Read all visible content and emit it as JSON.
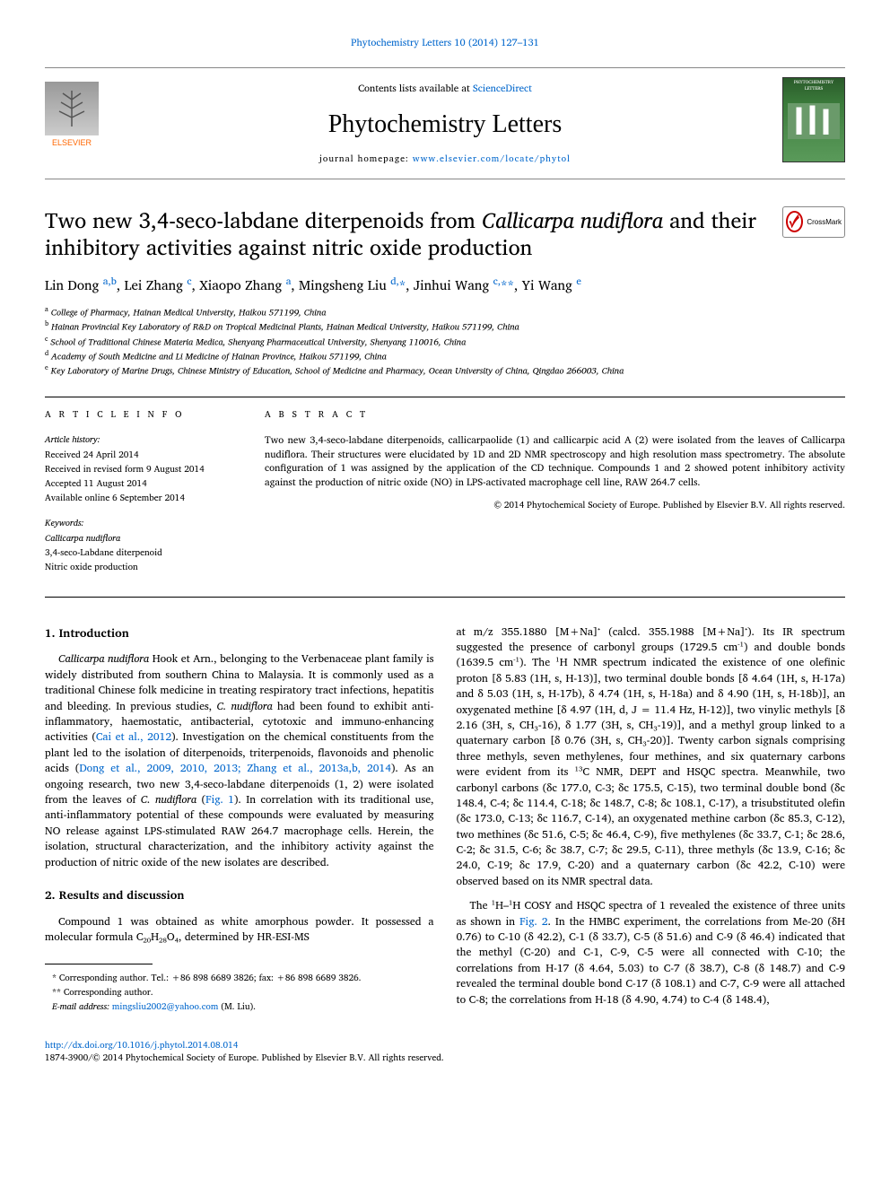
{
  "top_link": "Phytochemistry Letters 10 (2014) 127–131",
  "header": {
    "contents_prefix": "Contents lists available at ",
    "contents_link": "ScienceDirect",
    "journal_name": "Phytochemistry Letters",
    "homepage_prefix": "journal homepage: ",
    "homepage_link": "www.elsevier.com/locate/phytol",
    "elsevier": "ELSEVIER",
    "cover_title": "PHYTOCHEMISTRY LETTERS"
  },
  "crossmark": "CrossMark",
  "title_part1": "Two new 3,4-seco-labdane diterpenoids from ",
  "title_italic": "Callicarpa nudiflora",
  "title_part2": " and their inhibitory activities against nitric oxide production",
  "authors_html": "Lin Dong <sup><a>a,b</a></sup>, Lei Zhang <sup><a>c</a></sup>, Xiaopo Zhang <sup><a>a</a></sup>, Mingsheng Liu <sup><a>d,</a></sup><a>*</a>, Jinhui Wang <sup><a>c,</a></sup><a>**</a>, Yi Wang <sup><a>e</a></sup>",
  "affiliations": [
    "a College of Pharmacy, Hainan Medical University, Haikou 571199, China",
    "b Hainan Provincial Key Laboratory of R&D on Tropical Medicinal Plants, Hainan Medical University, Haikou 571199, China",
    "c School of Traditional Chinese Materia Medica, Shenyang Pharmaceutical University, Shenyang 110016, China",
    "d Academy of South Medicine and Li Medicine of Hainan Province, Haikou 571199, China",
    "e Key Laboratory of Marine Drugs, Chinese Ministry of Education, School of Medicine and Pharmacy, Ocean University of China, Qingdao 266003, China"
  ],
  "info": {
    "label": "A R T I C L E   I N F O",
    "history_label": "Article history:",
    "history": [
      "Received 24 April 2014",
      "Received in revised form 9 August 2014",
      "Accepted 11 August 2014",
      "Available online 6 September 2014"
    ],
    "keywords_label": "Keywords:",
    "keywords": [
      "Callicarpa nudiflora",
      "3,4-seco-Labdane diterpenoid",
      "Nitric oxide production"
    ]
  },
  "abstract": {
    "label": "A B S T R A C T",
    "text": "Two new 3,4-seco-labdane diterpenoids, callicarpaolide (1) and callicarpic acid A (2) were isolated from the leaves of Callicarpa nudiflora. Their structures were elucidated by 1D and 2D NMR spectroscopy and high resolution mass spectrometry. The absolute configuration of 1 was assigned by the application of the CD technique. Compounds 1 and 2 showed potent inhibitory activity against the production of nitric oxide (NO) in LPS-activated macrophage cell line, RAW 264.7 cells.",
    "copyright": "© 2014 Phytochemical Society of Europe. Published by Elsevier B.V. All rights reserved."
  },
  "sections": {
    "intro_heading": "1. Introduction",
    "intro_p1": "Callicarpa nudiflora Hook et Arn., belonging to the Verbenaceae plant family is widely distributed from southern China to Malaysia. It is commonly used as a traditional Chinese folk medicine in treating respiratory tract infections, hepatitis and bleeding. In previous studies, C. nudiflora had been found to exhibit anti-inflammatory, haemostatic, antibacterial, cytotoxic and immuno-enhancing activities (",
    "intro_ref1": "Cai et al., 2012",
    "intro_p1b": "). Investigation on the chemical constituents from the plant led to the isolation of diterpenoids, triterpenoids, flavonoids and phenolic acids (",
    "intro_ref2": "Dong et al., 2009, 2010, 2013; Zhang et al., 2013a,b, 2014",
    "intro_p1c": "). As an ongoing research, two new 3,4-seco-labdane diterpenoids (1, 2) were isolated from the leaves of C. nudiflora (",
    "intro_ref3": "Fig. 1",
    "intro_p1d": "). In correlation with its traditional use, anti-inflammatory potential of these compounds were evaluated by measuring NO release against LPS-stimulated RAW 264.7 macrophage cells. Herein, the isolation, structural characterization, and the inhibitory activity against the production of nitric oxide of the new isolates are described.",
    "results_heading": "2. Results and discussion",
    "results_p1": "Compound 1 was obtained as white amorphous powder. It possessed a molecular formula C₂₀H₂₈O₄, determined by HR-ESI-MS",
    "col2_p1": "at m/z 355.1880 [M+Na]⁺ (calcd. 355.1988 [M+Na]⁺). Its IR spectrum suggested the presence of carbonyl groups (1729.5 cm⁻¹) and double bonds (1639.5 cm⁻¹). The ¹H NMR spectrum indicated the existence of one olefinic proton [δ 5.83 (1H, s, H-13)], two terminal double bonds [δ 4.64 (1H, s, H-17a) and δ 5.03 (1H, s, H-17b), δ 4.74 (1H, s, H-18a) and δ 4.90 (1H, s, H-18b)], an oxygenated methine [δ 4.97 (1H, d, J = 11.4 Hz, H-12)], two vinylic methyls [δ 2.16 (3H, s, CH₃-16), δ 1.77 (3H, s, CH₃-19)], and a methyl group linked to a quaternary carbon [δ 0.76 (3H, s, CH₃-20)]. Twenty carbon signals comprising three methyls, seven methylenes, four methines, and six quaternary carbons were evident from its ¹³C NMR, DEPT and HSQC spectra. Meanwhile, two carbonyl carbons (δc 177.0, C-3; δc 175.5, C-15), two terminal double bond (δc 148.4, C-4; δc 114.4, C-18; δc 148.7, C-8; δc 108.1, C-17), a trisubstituted olefin (δc 173.0, C-13; δc 116.7, C-14), an oxygenated methine carbon (δc 85.3, C-12), two methines (δc 51.6, C-5; δc 46.4, C-9), five methylenes (δc 33.7, C-1; δc 28.6, C-2; δc 31.5, C-6; δc 38.7, C-7; δc 29.5, C-11), three methyls (δc 13.9, C-16; δc 24.0, C-19; δc 17.9, C-20) and a quaternary carbon (δc 42.2, C-10) were observed based on its NMR spectral data.",
    "col2_p2a": "The ¹H–¹H COSY and HSQC spectra of 1 revealed the existence of three units as shown in ",
    "col2_ref1": "Fig. 2",
    "col2_p2b": ". In the HMBC experiment, the correlations from Me-20 (δH 0.76) to C-10 (δ 42.2), C-1 (δ 33.7), C-5 (δ 51.6) and C-9 (δ 46.4) indicated that the methyl (C-20) and C-1, C-9, C-5 were all connected with C-10; the correlations from H-17 (δ 4.64, 5.03) to C-7 (δ 38.7), C-8 (δ 148.7) and C-9 revealed the terminal double bond C-17 (δ 108.1) and C-7, C-9 were all attached to C-8; the correlations from H-18 (δ 4.90, 4.74) to C-4 (δ 148.4),"
  },
  "footnotes": {
    "corr1": "* Corresponding author. Tel.: +86 898 6689 3826; fax: +86 898 6689 3826.",
    "corr2": "** Corresponding author.",
    "email_label": "E-mail address: ",
    "email": "mingsliu2002@yahoo.com",
    "email_suffix": " (M. Liu)."
  },
  "footer": {
    "doi": "http://dx.doi.org/10.1016/j.phytol.2014.08.014",
    "issn_line": "1874-3900/© 2014 Phytochemical Society of Europe. Published by Elsevier B.V. All rights reserved."
  }
}
